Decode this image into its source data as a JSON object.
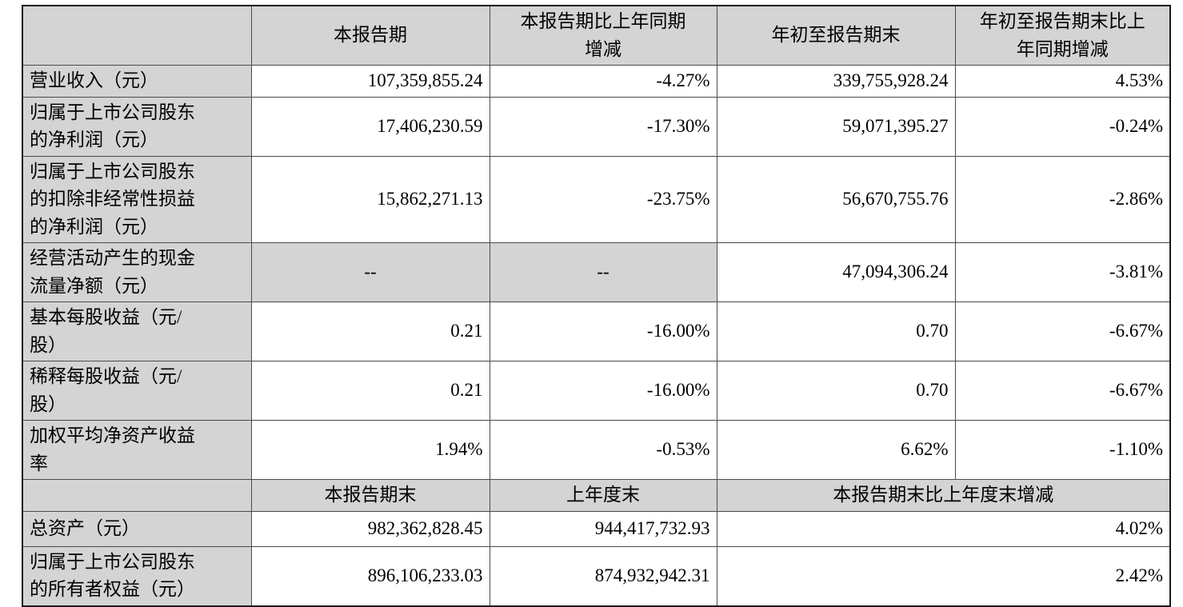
{
  "colors": {
    "header_bg": "#d4d4d4",
    "cell_bg": "#ffffff",
    "border": "#4a4a4a",
    "text": "#000000"
  },
  "table": {
    "section_period": {
      "header": {
        "corner": "",
        "current_period": "本报告期",
        "current_period_yoy": "本报告期比上年同期\n增减",
        "ytd": "年初至报告期末",
        "ytd_yoy": "年初至报告期末比上\n年同期增减"
      },
      "rows": [
        {
          "label": "营业收入（元）",
          "current_period": "107,359,855.24",
          "current_period_yoy": "-4.27%",
          "ytd": "339,755,928.24",
          "ytd_yoy": "4.53%"
        },
        {
          "label": "归属于上市公司股东\n的净利润（元）",
          "current_period": "17,406,230.59",
          "current_period_yoy": "-17.30%",
          "ytd": "59,071,395.27",
          "ytd_yoy": "-0.24%"
        },
        {
          "label": "归属于上市公司股东\n的扣除非经常性损益\n的净利润（元）",
          "current_period": "15,862,271.13",
          "current_period_yoy": "-23.75%",
          "ytd": "56,670,755.76",
          "ytd_yoy": "-2.86%"
        },
        {
          "label": "经营活动产生的现金\n流量净额（元）",
          "current_period": "--",
          "current_period_yoy": "--",
          "ytd": "47,094,306.24",
          "ytd_yoy": "-3.81%"
        },
        {
          "label": "基本每股收益（元/\n股）",
          "current_period": "0.21",
          "current_period_yoy": "-16.00%",
          "ytd": "0.70",
          "ytd_yoy": "-6.67%"
        },
        {
          "label": "稀释每股收益（元/\n股）",
          "current_period": "0.21",
          "current_period_yoy": "-16.00%",
          "ytd": "0.70",
          "ytd_yoy": "-6.67%"
        },
        {
          "label": "加权平均净资产收益\n率",
          "current_period": "1.94%",
          "current_period_yoy": "-0.53%",
          "ytd": "6.62%",
          "ytd_yoy": "-1.10%"
        }
      ]
    },
    "section_balance": {
      "header": {
        "corner": "",
        "period_end": "本报告期末",
        "prior_year_end": "上年度末",
        "period_end_vs_prior": "本报告期末比上年度末增减"
      },
      "rows": [
        {
          "label": "总资产（元）",
          "period_end": "982,362,828.45",
          "prior_year_end": "944,417,732.93",
          "change": "4.02%"
        },
        {
          "label": "归属于上市公司股东\n的所有者权益（元）",
          "period_end": "896,106,233.03",
          "prior_year_end": "874,932,942.31",
          "change": "2.42%"
        }
      ]
    }
  }
}
